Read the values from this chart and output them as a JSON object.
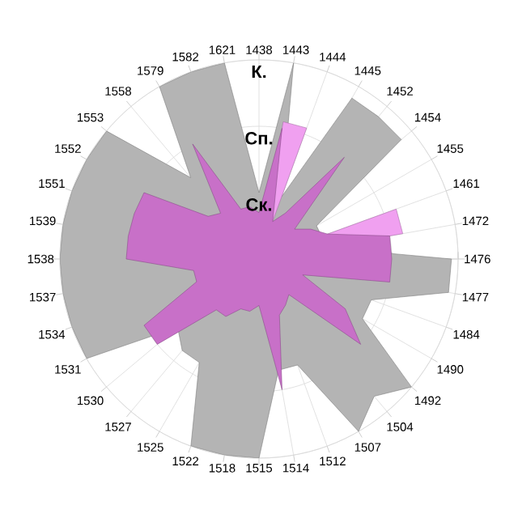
{
  "chart_data": {
    "type": "radar",
    "categories": [
      "1438",
      "1443",
      "1444",
      "1445",
      "1452",
      "1454",
      "1455",
      "1461",
      "1472",
      "1476",
      "1477",
      "1484",
      "1490",
      "1492",
      "1504",
      "1507",
      "1512",
      "1514",
      "1515",
      "1518",
      "1522",
      "1525",
      "1527",
      "1530",
      "1531",
      "1534",
      "1537",
      "1538",
      "1539",
      "1551",
      "1552",
      "1553",
      "1558",
      "1579",
      "1582",
      "1621"
    ],
    "ylim": [
      0,
      3
    ],
    "yticks": [
      {
        "value": 1,
        "label": "Ск."
      },
      {
        "value": 2,
        "label": "Сп."
      },
      {
        "value": 3,
        "label": "К."
      }
    ],
    "grid": true,
    "series": [
      {
        "color": "#b4b4b4",
        "values": [
          1.0,
          3.0,
          1.0,
          2.8,
          2.8,
          2.8,
          1.0,
          1.0,
          1.0,
          2.9,
          2.9,
          1.8,
          1.8,
          3.0,
          2.7,
          3.0,
          1.7,
          1.7,
          3.0,
          3.0,
          3.0,
          1.8,
          1.8,
          1.6,
          3.0,
          3.0,
          3.0,
          3.0,
          3.0,
          3.0,
          3.0,
          3.0,
          1.6,
          3.0,
          3.0,
          3.0
        ]
      },
      {
        "color": "#f0a0f0",
        "values": [
          0,
          2.1,
          2.1,
          0,
          0,
          0,
          0,
          2.2,
          2.2,
          0,
          0,
          0,
          0,
          0,
          0,
          0,
          0,
          0,
          0,
          0,
          0,
          0,
          0,
          0,
          0,
          0,
          0,
          0,
          0,
          0,
          0,
          0,
          0,
          0,
          0,
          0
        ]
      },
      {
        "color": "#c870c8",
        "values": [
          0.7,
          2.0,
          0.6,
          0.8,
          2.0,
          0.7,
          0.9,
          1.1,
          2.0,
          2.0,
          2.0,
          0.7,
          1.5,
          2.0,
          0.7,
          0.8,
          0.9,
          2.0,
          0.7,
          0.8,
          0.8,
          1.0,
          1.0,
          2.0,
          2.0,
          1.0,
          1.0,
          2.0,
          2.0,
          2.0,
          2.0,
          1.0,
          0.9,
          2.0,
          0.8,
          0.8
        ]
      }
    ]
  }
}
